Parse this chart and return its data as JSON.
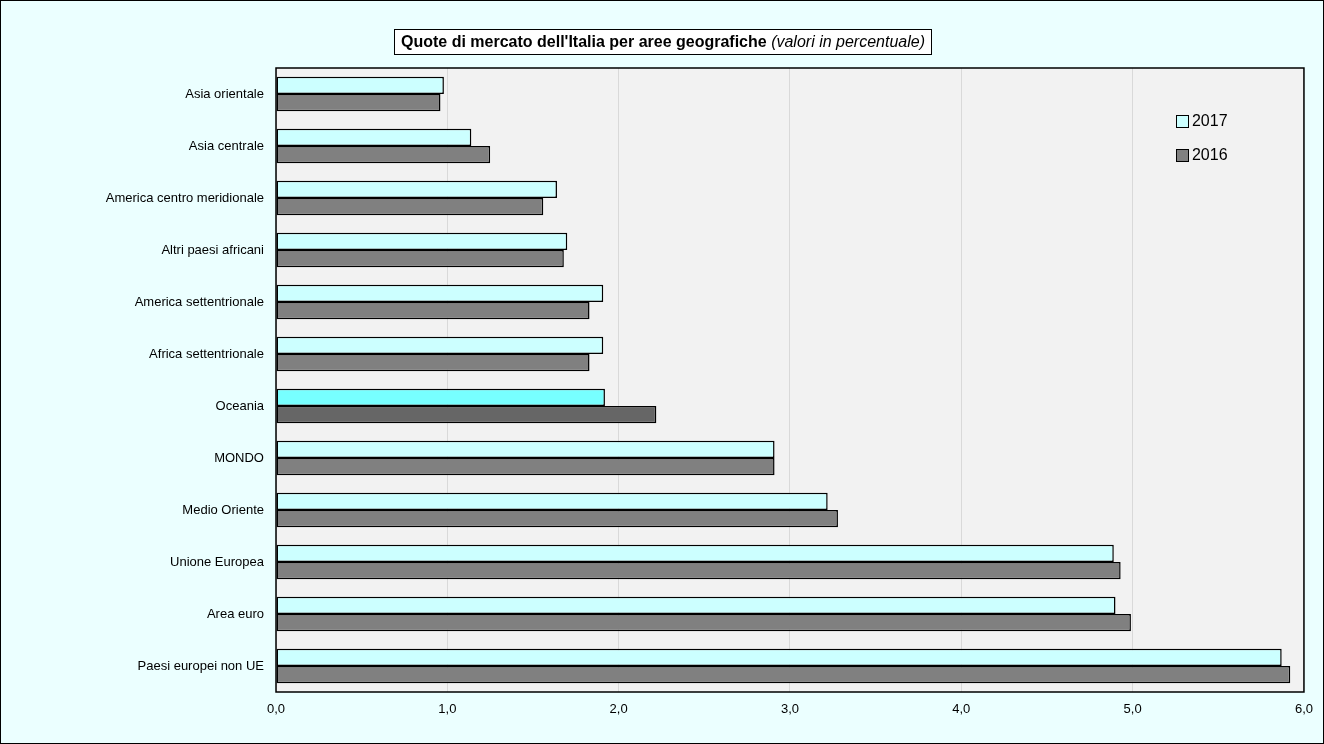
{
  "chart_data": {
    "type": "bar",
    "orientation": "horizontal",
    "title": "Quote di mercato dell'Italia per aree geografiche",
    "subtitle": "(valori in percentuale)",
    "categories": [
      "Asia orientale",
      "Asia centrale",
      "America centro meridionale",
      "Altri paesi africani",
      "America settentrionale",
      "Africa settentrionale",
      "Oceania",
      "MONDO",
      "Medio Oriente",
      "Unione Europea",
      "Area euro",
      "Paesi europei non UE"
    ],
    "series": [
      {
        "name": "2017",
        "color": "#ccffff",
        "colors": [
          "#ccffff",
          "#ccffff",
          "#ccffff",
          "#ccffff",
          "#ccffff",
          "#ccffff",
          "#77ffff",
          "#ccffff",
          "#ccffff",
          "#ccffff",
          "#ccffff",
          "#ccffff"
        ],
        "values": [
          0.98,
          1.14,
          1.64,
          1.7,
          1.91,
          1.91,
          1.92,
          2.91,
          3.22,
          4.89,
          4.9,
          5.87
        ]
      },
      {
        "name": "2016",
        "color": "#808080",
        "colors": [
          "#808080",
          "#808080",
          "#808080",
          "#808080",
          "#808080",
          "#808080",
          "#666666",
          "#808080",
          "#808080",
          "#808080",
          "#808080",
          "#808080"
        ],
        "values": [
          0.96,
          1.25,
          1.56,
          1.68,
          1.83,
          1.83,
          2.22,
          2.91,
          3.28,
          4.93,
          4.99,
          5.92
        ]
      }
    ],
    "xlim": [
      0,
      6
    ],
    "xticks": [
      {
        "value": 0,
        "label": "0,0"
      },
      {
        "value": 1,
        "label": "1,0"
      },
      {
        "value": 2,
        "label": "2,0"
      },
      {
        "value": 3,
        "label": "3,0"
      },
      {
        "value": 4,
        "label": "4,0"
      },
      {
        "value": 5,
        "label": "5,0"
      },
      {
        "value": 6,
        "label": "6,0"
      }
    ],
    "grid": "x",
    "legend": "top right"
  }
}
